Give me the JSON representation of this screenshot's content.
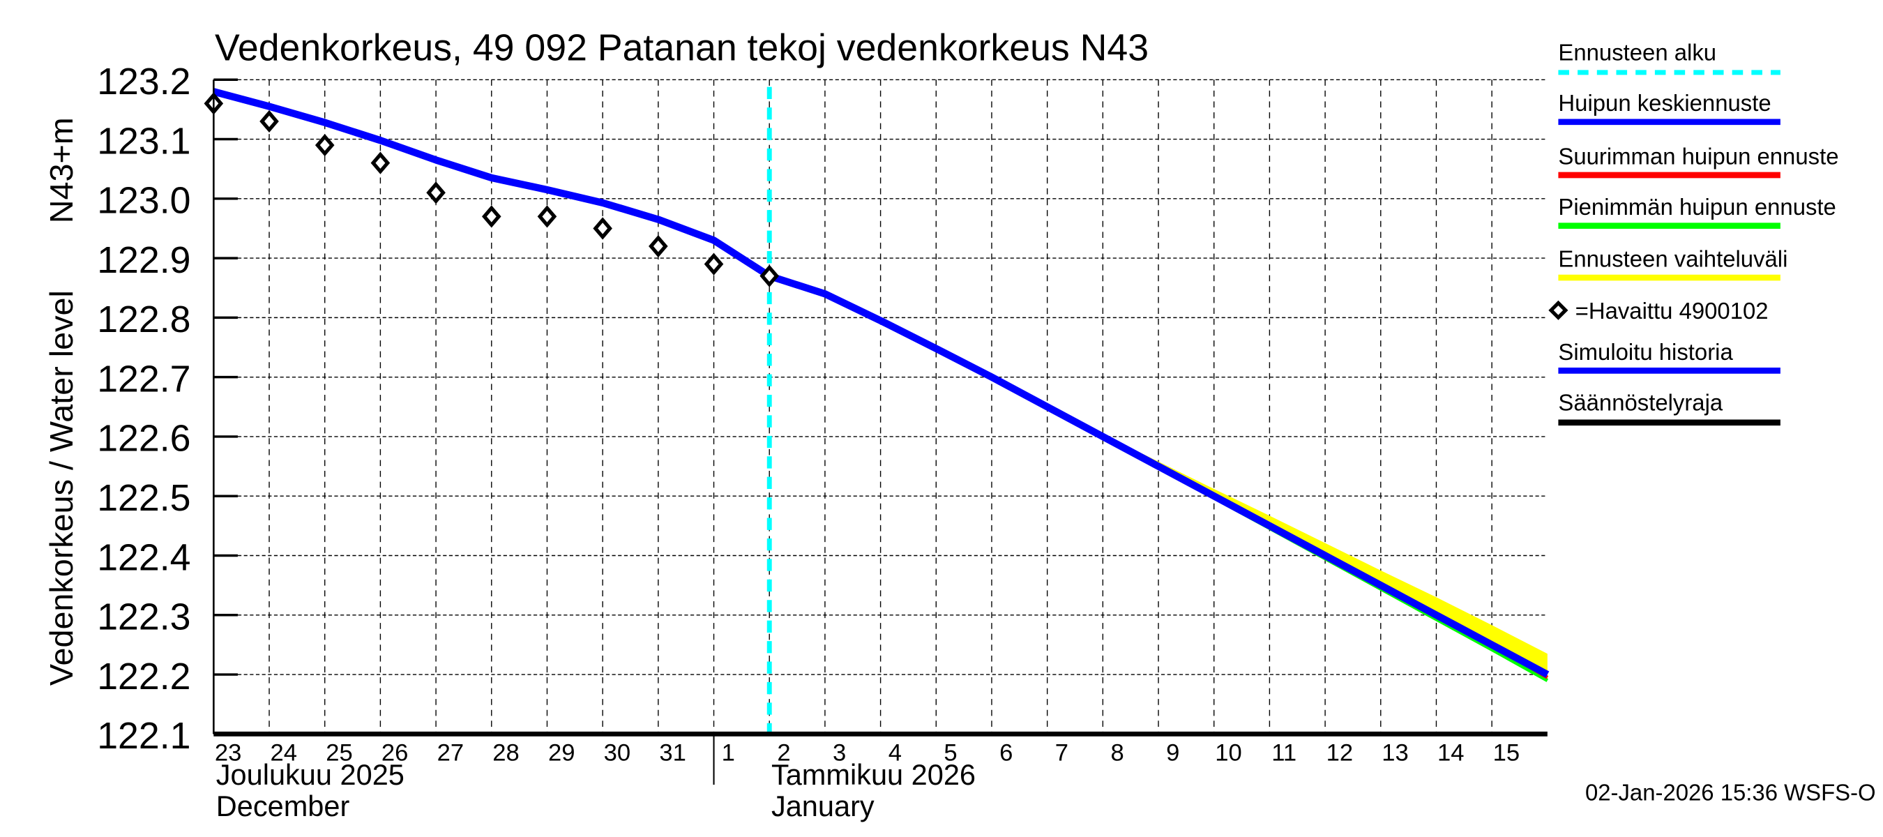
{
  "chart_data": {
    "type": "line",
    "title": "Vedenkorkeus, 49 092 Patanan tekoj vedenkorkeus N43",
    "ylabel_main": "Vedenkorkeus / Water level",
    "ylabel_unit": "N43+m",
    "ylim": [
      122.1,
      123.2
    ],
    "yticks": [
      "123.2",
      "123.1",
      "123.0",
      "122.9",
      "122.8",
      "122.7",
      "122.6",
      "122.5",
      "122.4",
      "122.3",
      "122.2",
      "122.1"
    ],
    "grid": true,
    "x_start": "2025-12-23",
    "x_end": "2026-01-16",
    "xtick_labels": [
      "23",
      "24",
      "25",
      "26",
      "27",
      "28",
      "29",
      "30",
      "31",
      "1",
      "2",
      "3",
      "4",
      "5",
      "6",
      "7",
      "8",
      "9",
      "10",
      "11",
      "12",
      "13",
      "14",
      "15"
    ],
    "month_labels": [
      {
        "fi": "Joulukuu  2025",
        "en": "December"
      },
      {
        "fi": "Tammikuu  2026",
        "en": "January"
      }
    ],
    "forecast_start": "2026-01-02",
    "observed": {
      "name": "=Havaittu 4900102",
      "dates": [
        "2025-12-23",
        "2025-12-24",
        "2025-12-25",
        "2025-12-26",
        "2025-12-27",
        "2025-12-28",
        "2025-12-29",
        "2025-12-30",
        "2025-12-31",
        "2026-01-01",
        "2026-01-02"
      ],
      "values": [
        123.16,
        123.13,
        123.09,
        123.06,
        123.01,
        122.97,
        122.97,
        122.95,
        122.92,
        122.89,
        122.87
      ]
    },
    "simulated": {
      "name": "Simuloitu historia",
      "dates": [
        "2025-12-23",
        "2025-12-24",
        "2025-12-25",
        "2025-12-26",
        "2025-12-27",
        "2025-12-28",
        "2025-12-29",
        "2025-12-30",
        "2025-12-31",
        "2026-01-01",
        "2026-01-02"
      ],
      "values": [
        123.18,
        123.155,
        123.128,
        123.098,
        123.065,
        123.035,
        123.015,
        122.993,
        122.965,
        122.93,
        122.87
      ]
    },
    "forecast": {
      "dates": [
        "2026-01-02",
        "2026-01-03",
        "2026-01-04",
        "2026-01-05",
        "2026-01-06",
        "2026-01-07",
        "2026-01-08",
        "2026-01-09",
        "2026-01-10",
        "2026-01-11",
        "2026-01-12",
        "2026-01-13",
        "2026-01-14",
        "2026-01-15",
        "2026-01-16"
      ],
      "mean": [
        122.87,
        122.84,
        122.795,
        122.748,
        122.7,
        122.65,
        122.6,
        122.55,
        122.5,
        122.45,
        122.4,
        122.35,
        122.3,
        122.25,
        122.2
      ],
      "max": [
        122.87,
        122.84,
        122.795,
        122.748,
        122.7,
        122.65,
        122.6,
        122.55,
        122.5,
        122.45,
        122.4,
        122.35,
        122.3,
        122.25,
        122.195
      ],
      "min": [
        122.87,
        122.84,
        122.795,
        122.748,
        122.7,
        122.65,
        122.6,
        122.548,
        122.497,
        122.446,
        122.395,
        122.344,
        122.293,
        122.242,
        122.19
      ],
      "band_upper": [
        122.87,
        122.84,
        122.795,
        122.748,
        122.7,
        122.652,
        122.604,
        122.558,
        122.512,
        122.467,
        122.421,
        122.375,
        122.33,
        122.283,
        122.235
      ],
      "band_lower": [
        122.87,
        122.84,
        122.795,
        122.748,
        122.7,
        122.65,
        122.6,
        122.548,
        122.497,
        122.446,
        122.395,
        122.344,
        122.293,
        122.242,
        122.19
      ]
    },
    "legend_position": "right"
  },
  "legend": {
    "items": [
      {
        "label": "Ennusteen alku",
        "color": "#00ffff",
        "style": "dashed"
      },
      {
        "label": "Huipun keskiennuste",
        "color": "#0000ff",
        "style": "line"
      },
      {
        "label": "Suurimman huipun ennuste",
        "color": "#ff0000",
        "style": "line"
      },
      {
        "label": "Pienimmän huipun ennuste",
        "color": "#00ff00",
        "style": "line"
      },
      {
        "label": "Ennusteen vaihteluväli",
        "color": "#ffff00",
        "style": "line"
      },
      {
        "label": "=Havaittu 4900102",
        "color": "#000000",
        "style": "diamond"
      },
      {
        "label": "Simuloitu historia",
        "color": "#0000ff",
        "style": "line"
      },
      {
        "label": "Säännöstelyraja",
        "color": "#000000",
        "style": "line"
      }
    ]
  },
  "footer": {
    "timestamp": "02-Jan-2026 15:36 WSFS-O"
  }
}
